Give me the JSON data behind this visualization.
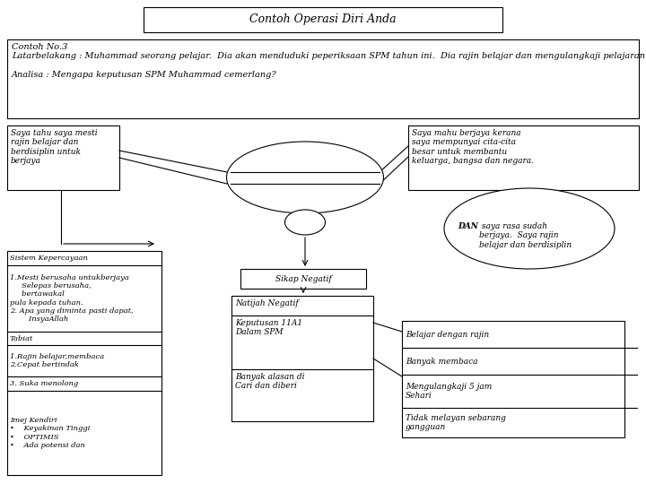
{
  "title": "Contoh Operasi Diri Anda",
  "bg_color": "#ffffff",
  "info_text": "Contoh No.3\nLatarbelakang : Muhammad seorang pelajar.  Dia akan menduduki peperiksaan SPM tahun ini.  Dia rajin belajar dan mengulangkaji pelajaran.  Dia sentiasa riang dan baik hati.\n\nAnalisa : Mengapa keputusan SPM Muhammad cemerlang?",
  "left_top_text": "Saya tahu saya mesti\nrajin belajar dan\nberdisiplin untuk\nberjaya",
  "right_top_text": "Saya mahu berjaya kerana\nsaya mempunyai cita-cita\nbesar untuk membantu\nkeluarga, bangsa dan negara.",
  "right_ellipse_bold": "DAN",
  "right_ellipse_text": " saya rasa sudah\nberjaya.  Saya rajin\nbelajar dan berdisiplin",
  "left_box_sections": [
    "Sistem Kepercayaan",
    "1.Mesti berusaha untukberjaya\n     Selepas berusaha,\n     bertawakal\npula kepada tuhan.\n2. Apa yang diminta pasti dapat,\n        InsyaAllah",
    "Tabiat",
    "1.Rajin belajar,membaca\n2.Cepat bertindak",
    "3. Suka menolong",
    "Imej Kendiri\n•    Keyakinan Tinggi\n•    OPTIMIS\n•    Ada potensi dan"
  ],
  "sikap_text": "Sikap Negatif",
  "natijah_sections": [
    "Natijah Negatif",
    "Keputusan 11A1\nDalam SPM",
    "Banyak alasan di\nCari dan diberi"
  ],
  "right_box_sections": [
    "Belajar dengan rajin",
    "Banyak membaca",
    "Mengulangkaji 5 jam\nSehari",
    "Tidak melayan sebarang\ngangguan"
  ],
  "font_size_title": 9,
  "font_size_info": 7,
  "font_size_body": 6.5,
  "font_size_small": 6
}
